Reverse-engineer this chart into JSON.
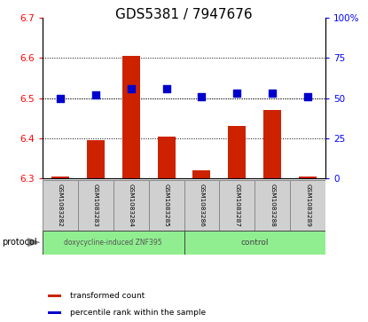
{
  "title": "GDS5381 / 7947676",
  "samples": [
    "GSM1083282",
    "GSM1083283",
    "GSM1083284",
    "GSM1083285",
    "GSM1083286",
    "GSM1083287",
    "GSM1083288",
    "GSM1083289"
  ],
  "red_values": [
    6.305,
    6.395,
    6.605,
    6.405,
    6.32,
    6.43,
    6.47,
    6.305
  ],
  "blue_values": [
    50,
    52,
    56,
    56,
    51,
    53,
    53,
    51
  ],
  "ylim_left": [
    6.3,
    6.7
  ],
  "ylim_right": [
    0,
    100
  ],
  "yticks_left": [
    6.3,
    6.4,
    6.5,
    6.6,
    6.7
  ],
  "yticks_right": [
    0,
    25,
    50,
    75,
    100
  ],
  "base_value": 6.3,
  "grid_values": [
    6.4,
    6.5,
    6.6
  ],
  "protocol_groups": [
    {
      "label": "doxycycline-induced ZNF395",
      "start": 0,
      "end": 4,
      "color": "#90ee90"
    },
    {
      "label": "control",
      "start": 4,
      "end": 8,
      "color": "#90ee90"
    }
  ],
  "bar_color": "#cc2200",
  "dot_color": "#0000cc",
  "bar_width": 0.5,
  "dot_size": 28,
  "title_fontsize": 11,
  "tick_fontsize": 7.5,
  "protocol_label": "protocol",
  "legend_items": [
    {
      "color": "#cc2200",
      "label": "transformed count"
    },
    {
      "color": "#0000cc",
      "label": "percentile rank within the sample"
    }
  ],
  "right_tick_labels": [
    "0",
    "25",
    "50",
    "75",
    "100%"
  ],
  "fig_bg": "#ffffff"
}
